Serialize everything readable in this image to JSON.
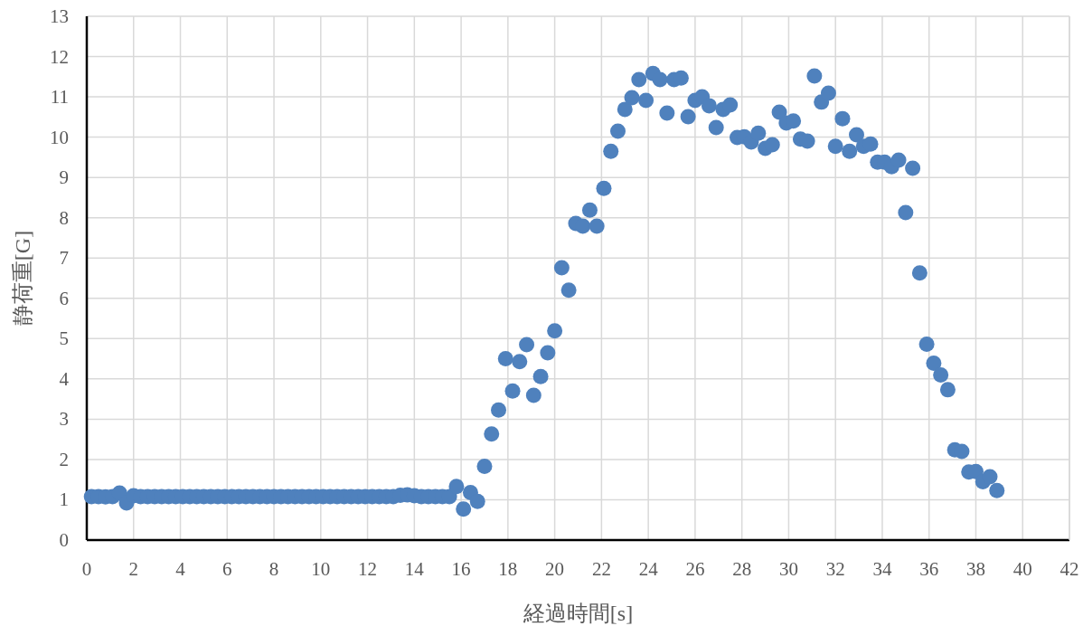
{
  "chart_data": {
    "type": "scatter",
    "xlabel": "経過時間[s]",
    "ylabel": "静荷重[G]",
    "x": [
      0.2,
      0.5,
      0.8,
      1.1,
      1.4,
      1.7,
      2,
      2.3,
      2.6,
      2.9,
      3.2,
      3.5,
      3.8,
      4.1,
      4.4,
      4.7,
      5,
      5.3,
      5.6,
      5.9,
      6.2,
      6.5,
      6.8,
      7.1,
      7.4,
      7.7,
      8,
      8.3,
      8.6,
      8.9,
      9.2,
      9.5,
      9.8,
      10.1,
      10.4,
      10.7,
      11,
      11.3,
      11.6,
      11.9,
      12.2,
      12.5,
      12.8,
      13.1,
      13.4,
      13.7,
      14,
      14.3,
      14.6,
      14.9,
      15.2,
      15.5,
      15.8,
      16.1,
      16.4,
      16.7,
      17,
      17.3,
      17.6,
      17.9,
      18.2,
      18.5,
      18.8,
      19.1,
      19.4,
      19.7,
      20,
      20.3,
      20.6,
      20.9,
      21.2,
      21.5,
      21.8,
      22.1,
      22.4,
      22.7,
      23,
      23.3,
      23.6,
      23.9,
      24.2,
      24.5,
      24.8,
      25.1,
      25.4,
      25.7,
      26,
      26.3,
      26.6,
      26.9,
      27.2,
      27.5,
      27.8,
      28.1,
      28.4,
      28.7,
      29,
      29.3,
      29.6,
      29.9,
      30.2,
      30.5,
      30.8,
      31.1,
      31.4,
      31.7,
      32,
      32.3,
      32.6,
      32.9,
      33.2,
      33.5,
      33.8,
      34.1,
      34.4,
      34.7,
      35,
      35.3,
      35.6,
      35.9,
      36.2,
      36.5,
      36.8,
      37.1,
      37.4,
      37.7,
      38,
      38.3,
      38.6,
      38.9
    ],
    "series": [
      {
        "color": "#4f81bd",
        "values": [
          1.08,
          1.08,
          1.07,
          1.08,
          1.17,
          0.92,
          1.1,
          1.08,
          1.08,
          1.08,
          1.08,
          1.08,
          1.08,
          1.08,
          1.08,
          1.08,
          1.08,
          1.08,
          1.08,
          1.08,
          1.08,
          1.08,
          1.08,
          1.08,
          1.08,
          1.08,
          1.08,
          1.08,
          1.08,
          1.08,
          1.08,
          1.08,
          1.08,
          1.08,
          1.08,
          1.08,
          1.08,
          1.08,
          1.08,
          1.08,
          1.08,
          1.08,
          1.08,
          1.08,
          1.11,
          1.12,
          1.1,
          1.08,
          1.08,
          1.08,
          1.08,
          1.08,
          1.33,
          0.77,
          1.18,
          0.96,
          1.83,
          2.63,
          3.23,
          4.5,
          3.7,
          4.43,
          4.85,
          3.59,
          4.06,
          4.65,
          5.19,
          6.76,
          6.2,
          7.86,
          7.79,
          8.19,
          7.79,
          8.73,
          9.65,
          10.15,
          10.69,
          10.98,
          11.43,
          10.91,
          11.58,
          11.43,
          10.6,
          11.43,
          11.47,
          10.51,
          10.91,
          11.0,
          10.78,
          10.24,
          10.69,
          10.8,
          9.99,
          10.01,
          9.88,
          10.1,
          9.72,
          9.81,
          10.62,
          10.35,
          10.4,
          9.95,
          9.9,
          11.52,
          10.87,
          11.09,
          9.77,
          10.46,
          9.65,
          10.06,
          9.77,
          9.83,
          9.38,
          9.38,
          9.27,
          9.43,
          8.13,
          9.23,
          6.63,
          4.86,
          4.39,
          4.1,
          3.73,
          2.24,
          2.2,
          1.69,
          1.7,
          1.45,
          1.57,
          1.23
        ]
      }
    ],
    "xlim": [
      0,
      42
    ],
    "ylim": [
      0,
      13
    ],
    "xticks": [
      0,
      2,
      4,
      6,
      8,
      10,
      12,
      14,
      16,
      18,
      20,
      22,
      24,
      26,
      28,
      30,
      32,
      34,
      36,
      38,
      40,
      42
    ],
    "yticks": [
      0,
      1,
      2,
      3,
      4,
      5,
      6,
      7,
      8,
      9,
      10,
      11,
      12,
      13
    ],
    "grid": true,
    "marker": "circle"
  }
}
